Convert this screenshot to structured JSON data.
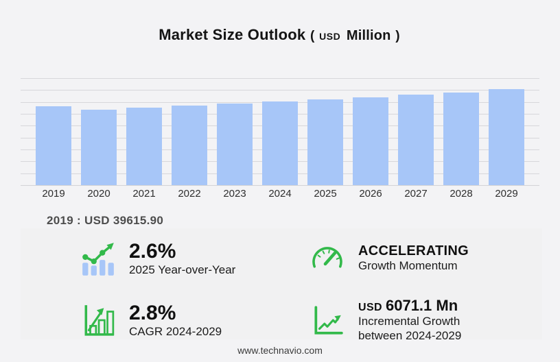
{
  "header": {
    "title": "Market Size Outlook",
    "paren_open": "(",
    "unit_currency": "USD",
    "unit_label": "Million",
    "paren_close": ")"
  },
  "chart_data": {
    "type": "bar",
    "title": "Market Size Outlook (USD Million)",
    "unit": "USD Million",
    "categories": [
      "2019",
      "2020",
      "2021",
      "2022",
      "2023",
      "2024",
      "2025",
      "2026",
      "2027",
      "2028",
      "2029"
    ],
    "values": [
      39615.9,
      37910,
      38700,
      39970,
      40860,
      41890,
      42980,
      43940,
      45310,
      46480,
      47960
    ],
    "values_estimated_except_2019": true,
    "xlabel": "",
    "ylabel": "",
    "ylim": [
      0,
      53500
    ],
    "grid": true,
    "legend": "none",
    "bar_color": "#a7c6f8",
    "callout": "2019 : USD  39615.90"
  },
  "stats": [
    {
      "icon": "yoy-trend-icon",
      "value": "2.6%",
      "label": "2025 Year-over-Year"
    },
    {
      "icon": "speedometer-icon",
      "value": "ACCELERATING",
      "label": "Growth Momentum"
    },
    {
      "icon": "cagr-bar-chart-icon",
      "value": "2.8%",
      "label": "CAGR 2024-2029"
    },
    {
      "icon": "incremental-growth-chart-icon",
      "value_prefix": "USD",
      "value": "6071.1 Mn",
      "label": "Incremental Growth between 2024-2029"
    }
  ],
  "footer": {
    "url": "www.technavio.com"
  },
  "colors": {
    "accent_green": "#32b94a",
    "bar_blue": "#a7c6f8",
    "background": "#f3f3f5",
    "panel": "#f1f1f2",
    "gridline": "#d7d7da"
  }
}
